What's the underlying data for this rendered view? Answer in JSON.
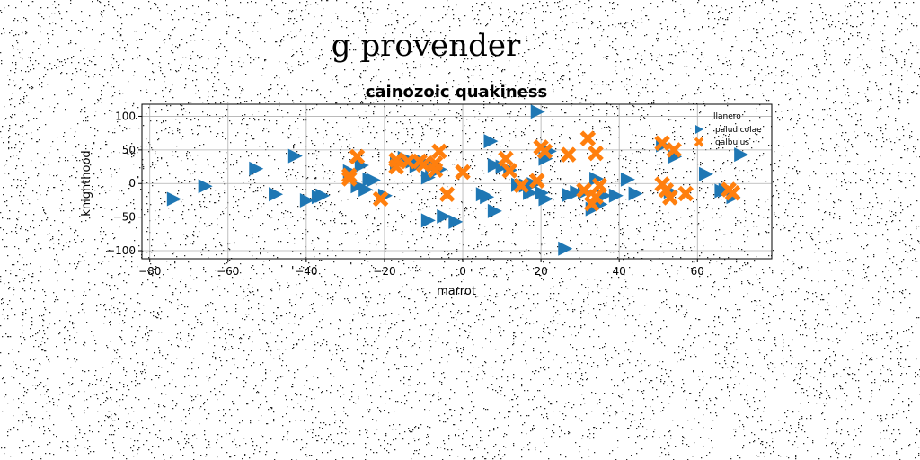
{
  "suptitle": "g provender",
  "chart_data": {
    "type": "scatter",
    "title": "cainozoic quakiness",
    "xlabel": "marrot",
    "ylabel": "knighthood",
    "xlim": [
      -82,
      79
    ],
    "ylim": [
      -112,
      118
    ],
    "xticks": [
      "−80",
      "−60",
      "−40",
      "−20",
      "0",
      "20",
      "40",
      "60"
    ],
    "yticks": [
      "−100",
      "−50",
      "0",
      "50",
      "100"
    ],
    "grid": true,
    "legend_position": "top-right",
    "legend_title": "llanero",
    "series": [
      {
        "name": "paludicolae",
        "marker": "triangle-right",
        "color": "#1f77b4",
        "points": [
          [
            -74,
            -23
          ],
          [
            -66,
            -4
          ],
          [
            -53,
            22
          ],
          [
            -48,
            -16
          ],
          [
            -43,
            41
          ],
          [
            -40,
            -25
          ],
          [
            -37,
            -20
          ],
          [
            -36,
            -18
          ],
          [
            -29,
            18
          ],
          [
            -27,
            -4
          ],
          [
            -26,
            27
          ],
          [
            -25,
            -9
          ],
          [
            -24,
            6
          ],
          [
            -23,
            5
          ],
          [
            -20,
            -18
          ],
          [
            -17,
            30
          ],
          [
            -15,
            38
          ],
          [
            -13,
            33
          ],
          [
            -12,
            26
          ],
          [
            -10,
            32
          ],
          [
            -9,
            9
          ],
          [
            -9,
            -55
          ],
          [
            -8,
            25
          ],
          [
            -6,
            21
          ],
          [
            -5,
            -49
          ],
          [
            -2,
            -57
          ],
          [
            5,
            -16
          ],
          [
            6,
            -20
          ],
          [
            7,
            63
          ],
          [
            8,
            -41
          ],
          [
            8,
            27
          ],
          [
            10,
            25
          ],
          [
            12,
            20
          ],
          [
            14,
            -2
          ],
          [
            16,
            -3
          ],
          [
            17,
            -14
          ],
          [
            18,
            -1
          ],
          [
            19,
            107
          ],
          [
            20,
            -14
          ],
          [
            21,
            -23
          ],
          [
            21,
            37
          ],
          [
            22,
            48
          ],
          [
            26,
            -97
          ],
          [
            27,
            -17
          ],
          [
            29,
            -13
          ],
          [
            31,
            -13
          ],
          [
            33,
            -38
          ],
          [
            34,
            7
          ],
          [
            35,
            -31
          ],
          [
            36,
            -18
          ],
          [
            39,
            -18
          ],
          [
            42,
            6
          ],
          [
            44,
            -15
          ],
          [
            51,
            57
          ],
          [
            53,
            -12
          ],
          [
            54,
            40
          ],
          [
            62,
            14
          ],
          [
            66,
            -11
          ],
          [
            67,
            -10
          ],
          [
            69,
            -20
          ],
          [
            71,
            43
          ]
        ]
      },
      {
        "name": "galbulus",
        "marker": "x",
        "color": "#ff7f0e",
        "points": [
          [
            -29,
            12
          ],
          [
            -29,
            7
          ],
          [
            -27,
            40
          ],
          [
            -21,
            -23
          ],
          [
            -17,
            35
          ],
          [
            -17,
            25
          ],
          [
            -14,
            33
          ],
          [
            -11,
            33
          ],
          [
            -10,
            28
          ],
          [
            -7,
            20
          ],
          [
            -7,
            30
          ],
          [
            -6,
            48
          ],
          [
            -4,
            -16
          ],
          [
            0,
            17
          ],
          [
            11,
            37
          ],
          [
            12,
            19
          ],
          [
            15,
            -3
          ],
          [
            19,
            4
          ],
          [
            20,
            54
          ],
          [
            21,
            48
          ],
          [
            27,
            43
          ],
          [
            31,
            -10
          ],
          [
            32,
            67
          ],
          [
            33,
            -30
          ],
          [
            34,
            45
          ],
          [
            34,
            -20
          ],
          [
            35,
            -3
          ],
          [
            51,
            60
          ],
          [
            51,
            -1
          ],
          [
            52,
            -10
          ],
          [
            53,
            -21
          ],
          [
            54,
            50
          ],
          [
            57,
            -15
          ],
          [
            68,
            -9
          ],
          [
            69,
            -14
          ]
        ]
      }
    ]
  }
}
